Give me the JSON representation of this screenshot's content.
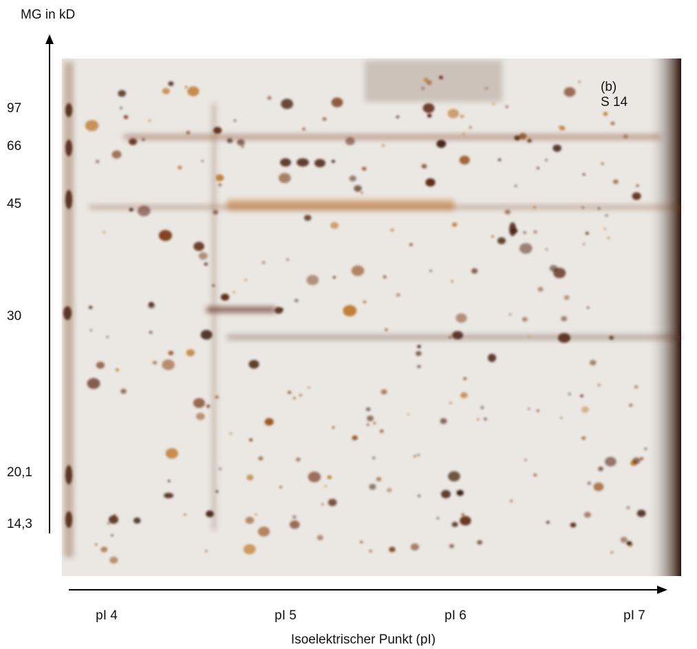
{
  "y_axis": {
    "title": "MG in kD",
    "labels": [
      "97",
      "66",
      "45",
      "30",
      "20,1",
      "14,3"
    ]
  },
  "x_axis": {
    "title": "Isoelektrischer Punkt (pI)",
    "labels": [
      "pI 4",
      "pI 5",
      "pI 6",
      "pI 7"
    ]
  },
  "panel": {
    "label": "(b)",
    "sample": "S 14"
  }
}
